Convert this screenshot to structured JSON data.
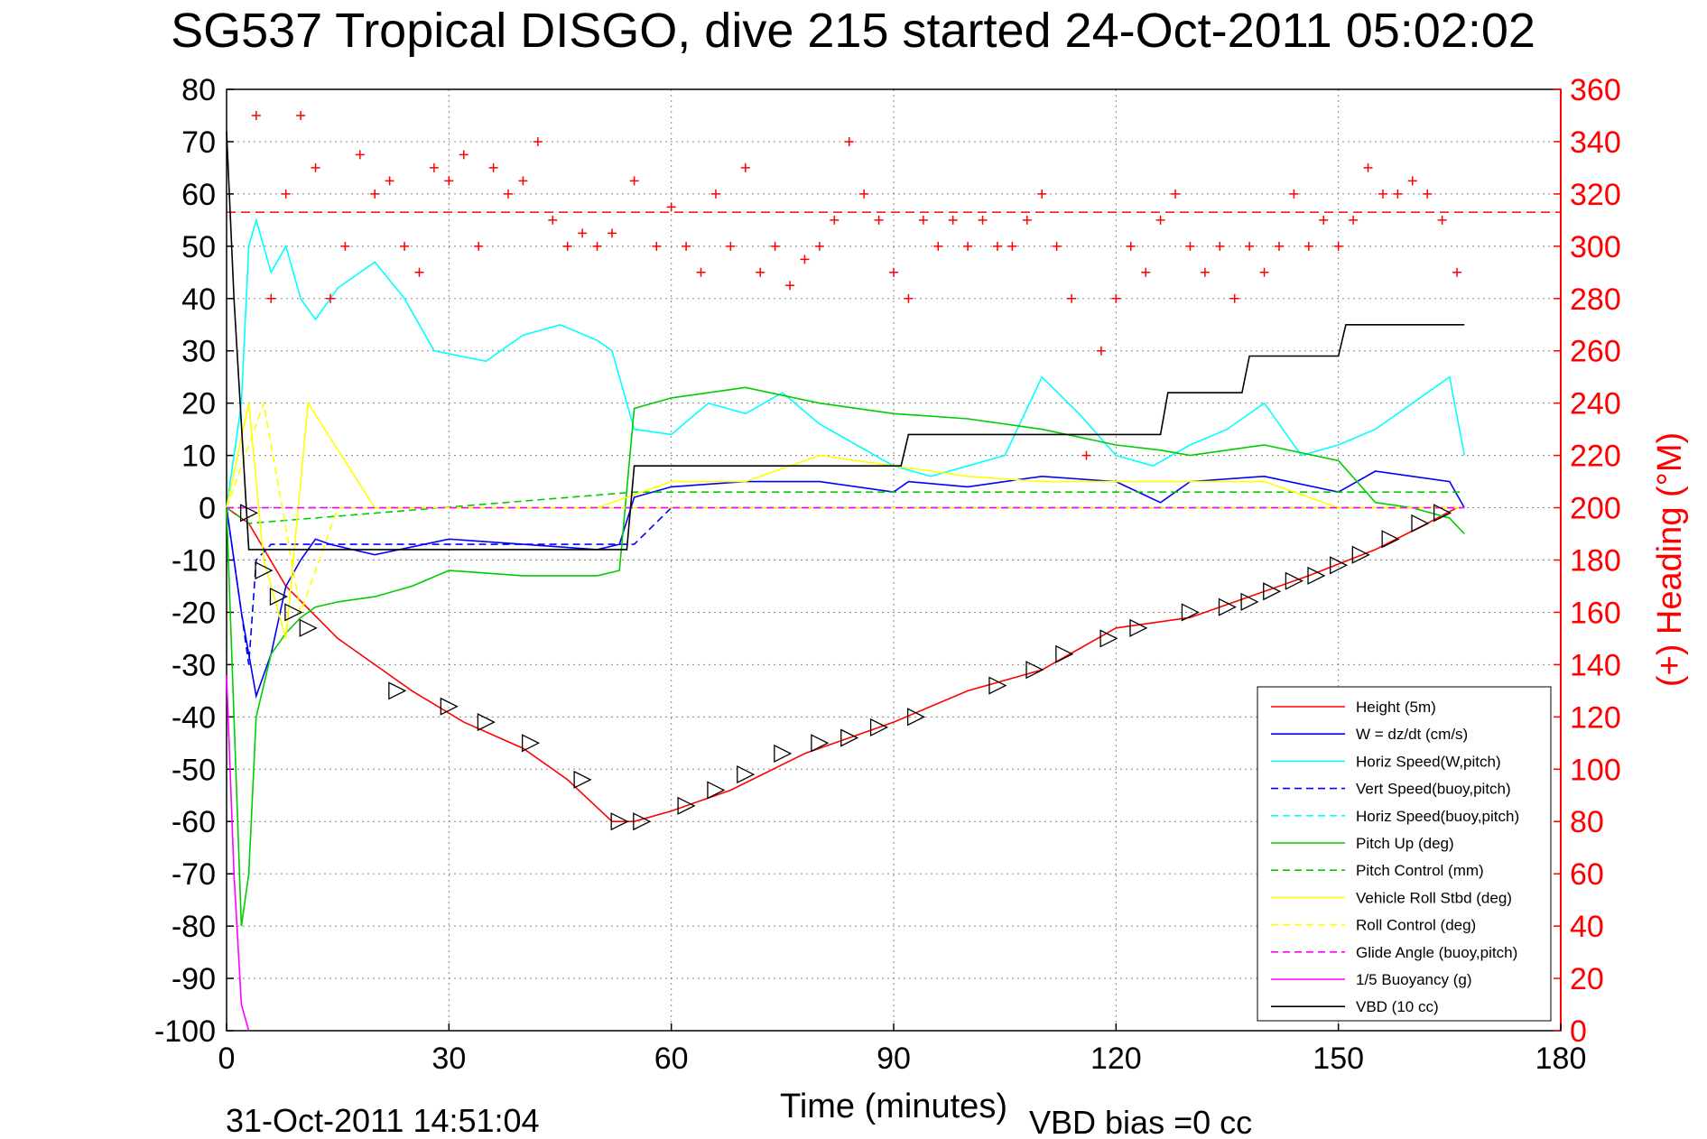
{
  "chart_data": {
    "type": "line",
    "title": "SG537 Tropical DISGO, dive 215 started 24-Oct-2011 05:02:02",
    "xlabel": "Time (minutes)",
    "ylabel_right": "(+) Heading (°M)",
    "xlim": [
      0,
      180
    ],
    "ylim": [
      -100,
      80
    ],
    "ylim_right": [
      0,
      360
    ],
    "x_ticks": [
      "0",
      "30",
      "60",
      "90",
      "120",
      "150",
      "180"
    ],
    "y_ticks": [
      "80",
      "70",
      "60",
      "50",
      "40",
      "30",
      "20",
      "10",
      "0",
      "-10",
      "-20",
      "-30",
      "-40",
      "-50",
      "-60",
      "-70",
      "-80",
      "-90",
      "-100"
    ],
    "y_ticks_right": [
      "360",
      "340",
      "320",
      "300",
      "280",
      "260",
      "240",
      "220",
      "200",
      "180",
      "160",
      "140",
      "120",
      "100",
      "80",
      "60",
      "40",
      "20",
      "0"
    ],
    "grid": true,
    "legend_position": "bottom-right",
    "footer_date": "31-Oct-2011 14:51:04",
    "footer_note": "VBD bias =0 cc",
    "heading_target_line": 313,
    "series": [
      {
        "name": "Height (5m)",
        "color": "#ff0000",
        "style": "solid",
        "x": [
          0,
          3,
          8,
          15,
          25,
          32,
          40,
          46,
          52,
          55,
          60,
          68,
          78,
          90,
          100,
          110,
          120,
          130,
          138,
          146,
          155,
          162,
          166
        ],
        "y": [
          0,
          -3,
          -15,
          -25,
          -35,
          -41,
          -46,
          -52,
          -60,
          -60,
          -58,
          -54,
          -47,
          -41,
          -35,
          -31,
          -23,
          -21,
          -17,
          -13,
          -8,
          -3,
          0
        ]
      },
      {
        "name": "W = dz/dt (cm/s)",
        "color": "#0000ff",
        "style": "solid",
        "x": [
          0,
          2,
          4,
          6,
          8,
          10,
          12,
          14,
          20,
          30,
          40,
          50,
          53,
          55,
          60,
          70,
          80,
          90,
          92,
          100,
          110,
          120,
          126,
          130,
          140,
          150,
          155,
          160,
          165,
          167
        ],
        "y": [
          0,
          -20,
          -36,
          -28,
          -15,
          -10,
          -6,
          -7,
          -9,
          -6,
          -7,
          -8,
          -7,
          2,
          4,
          5,
          5,
          3,
          5,
          4,
          6,
          5,
          1,
          5,
          6,
          3,
          7,
          6,
          5,
          0
        ]
      },
      {
        "name": "Horiz Speed(W,pitch)",
        "color": "#00ffff",
        "style": "solid",
        "x": [
          0,
          2,
          3,
          4,
          6,
          8,
          10,
          12,
          15,
          20,
          24,
          28,
          35,
          40,
          45,
          50,
          52,
          55,
          60,
          65,
          70,
          75,
          80,
          85,
          90,
          95,
          100,
          105,
          110,
          115,
          120,
          125,
          130,
          135,
          140,
          145,
          150,
          155,
          160,
          165,
          167
        ],
        "y": [
          0,
          20,
          50,
          55,
          45,
          50,
          40,
          36,
          42,
          47,
          40,
          30,
          28,
          33,
          35,
          32,
          30,
          15,
          14,
          20,
          18,
          22,
          16,
          12,
          8,
          6,
          8,
          10,
          25,
          18,
          10,
          8,
          12,
          15,
          20,
          10,
          12,
          15,
          20,
          25,
          10
        ]
      },
      {
        "name": "Vert Speed(buoy,pitch)",
        "color": "#0000ff",
        "style": "dashed",
        "x": [
          0,
          3,
          4,
          6,
          55,
          60,
          90,
          150,
          167
        ],
        "y": [
          0,
          -30,
          -10,
          -7,
          -7,
          0,
          0,
          0,
          0
        ]
      },
      {
        "name": "Horiz Speed(buoy,pitch)",
        "color": "#00ffff",
        "style": "dashed",
        "x": [
          0,
          3,
          55,
          167
        ],
        "y": [
          0,
          0,
          0,
          0
        ]
      },
      {
        "name": "Pitch Up (deg)",
        "color": "#00cc00",
        "style": "solid",
        "x": [
          0,
          2,
          3,
          4,
          6,
          8,
          10,
          12,
          15,
          20,
          25,
          30,
          40,
          50,
          53,
          55,
          60,
          70,
          80,
          90,
          100,
          110,
          120,
          126,
          130,
          140,
          150,
          155,
          160,
          165,
          167
        ],
        "y": [
          0,
          -80,
          -70,
          -40,
          -28,
          -24,
          -21,
          -19,
          -18,
          -17,
          -15,
          -12,
          -13,
          -13,
          -12,
          19,
          21,
          23,
          20,
          18,
          17,
          15,
          12,
          11,
          10,
          12,
          9,
          1,
          0,
          -2,
          -5
        ]
      },
      {
        "name": "Pitch Control (mm)",
        "color": "#00cc00",
        "style": "dashed",
        "x": [
          0,
          3,
          55,
          90,
          120,
          150,
          167
        ],
        "y": [
          0,
          -3,
          3,
          3,
          3,
          3,
          3
        ]
      },
      {
        "name": "Vehicle Roll Stbd (deg)",
        "color": "#ffff00",
        "style": "solid",
        "x": [
          0,
          3,
          5,
          8,
          11,
          20,
          30,
          40,
          50,
          60,
          70,
          80,
          90,
          100,
          110,
          120,
          130,
          140,
          150,
          160,
          167
        ],
        "y": [
          0,
          20,
          -10,
          -25,
          20,
          0,
          0,
          0,
          0,
          5,
          5,
          10,
          8,
          6,
          5,
          5,
          5,
          5,
          0,
          0,
          0
        ]
      },
      {
        "name": "Roll Control (deg)",
        "color": "#ffff00",
        "style": "dashed",
        "x": [
          0,
          5,
          10,
          15,
          20,
          30,
          40,
          50,
          60,
          70,
          80,
          90,
          100,
          110,
          120,
          130,
          140,
          150,
          160,
          167
        ],
        "y": [
          0,
          20,
          -20,
          0,
          0,
          0,
          0,
          0,
          0,
          0,
          0,
          0,
          0,
          0,
          0,
          0,
          0,
          0,
          0,
          0
        ]
      },
      {
        "name": "Glide Angle (buoy,pitch)",
        "color": "#ff00ff",
        "style": "dashed",
        "x": [
          0,
          167
        ],
        "y": [
          0,
          0
        ]
      },
      {
        "name": "1/5 Buoyancy (g)",
        "color": "#ff00ff",
        "style": "solid",
        "x": [
          0,
          1,
          2,
          3
        ],
        "y": [
          -32,
          -70,
          -95,
          -100
        ]
      },
      {
        "name": "VBD (10 cc)",
        "color": "#000000",
        "style": "solid",
        "x": [
          0,
          1,
          3,
          4,
          54,
          55,
          91,
          92,
          126,
          127,
          137,
          138,
          150,
          151,
          167
        ],
        "y": [
          72,
          40,
          -8,
          -8,
          -8,
          8,
          8,
          14,
          14,
          22,
          22,
          29,
          29,
          35,
          35
        ]
      },
      {
        "name": "Heading (+)",
        "color": "#ff0000",
        "style": "marker",
        "axis": "right",
        "x": [
          4,
          6,
          8,
          10,
          12,
          14,
          16,
          18,
          20,
          22,
          24,
          26,
          28,
          30,
          32,
          34,
          36,
          38,
          40,
          42,
          44,
          46,
          48,
          50,
          52,
          55,
          58,
          60,
          62,
          64,
          66,
          68,
          70,
          72,
          74,
          76,
          78,
          80,
          82,
          84,
          86,
          88,
          90,
          92,
          94,
          96,
          98,
          100,
          102,
          104,
          106,
          108,
          110,
          112,
          114,
          116,
          118,
          120,
          122,
          124,
          126,
          128,
          130,
          132,
          134,
          136,
          138,
          140,
          142,
          144,
          146,
          148,
          150,
          152,
          154,
          156,
          158,
          160,
          162,
          164,
          166
        ],
        "y": [
          350,
          280,
          320,
          350,
          330,
          280,
          300,
          335,
          320,
          325,
          300,
          290,
          330,
          325,
          335,
          300,
          330,
          320,
          325,
          340,
          310,
          300,
          305,
          300,
          305,
          325,
          300,
          315,
          300,
          290,
          320,
          300,
          330,
          290,
          300,
          285,
          295,
          300,
          310,
          340,
          320,
          310,
          290,
          280,
          310,
          300,
          310,
          300,
          310,
          300,
          300,
          310,
          320,
          300,
          280,
          220,
          260,
          280,
          300,
          290,
          310,
          320,
          300,
          290,
          300,
          280,
          300,
          290,
          300,
          320,
          300,
          310,
          300,
          310,
          330,
          320,
          320,
          325,
          320,
          310,
          290
        ]
      }
    ],
    "markers": {
      "name": "dive-points",
      "x": [
        3,
        5,
        7,
        9,
        11,
        23,
        30,
        35,
        41,
        48,
        53,
        56,
        62,
        66,
        70,
        75,
        80,
        84,
        88,
        93,
        104,
        109,
        113,
        119,
        123,
        130,
        135,
        138,
        141,
        144,
        147,
        150,
        153,
        157,
        161,
        164
      ],
      "y": [
        -1,
        -12,
        -17,
        -20,
        -23,
        -35,
        -38,
        -41,
        -45,
        -52,
        -60,
        -60,
        -57,
        -54,
        -51,
        -47,
        -45,
        -44,
        -42,
        -40,
        -34,
        -31,
        -28,
        -25,
        -23,
        -20,
        -19,
        -18,
        -16,
        -14,
        -13,
        -11,
        -9,
        -6,
        -3,
        -1
      ]
    }
  }
}
